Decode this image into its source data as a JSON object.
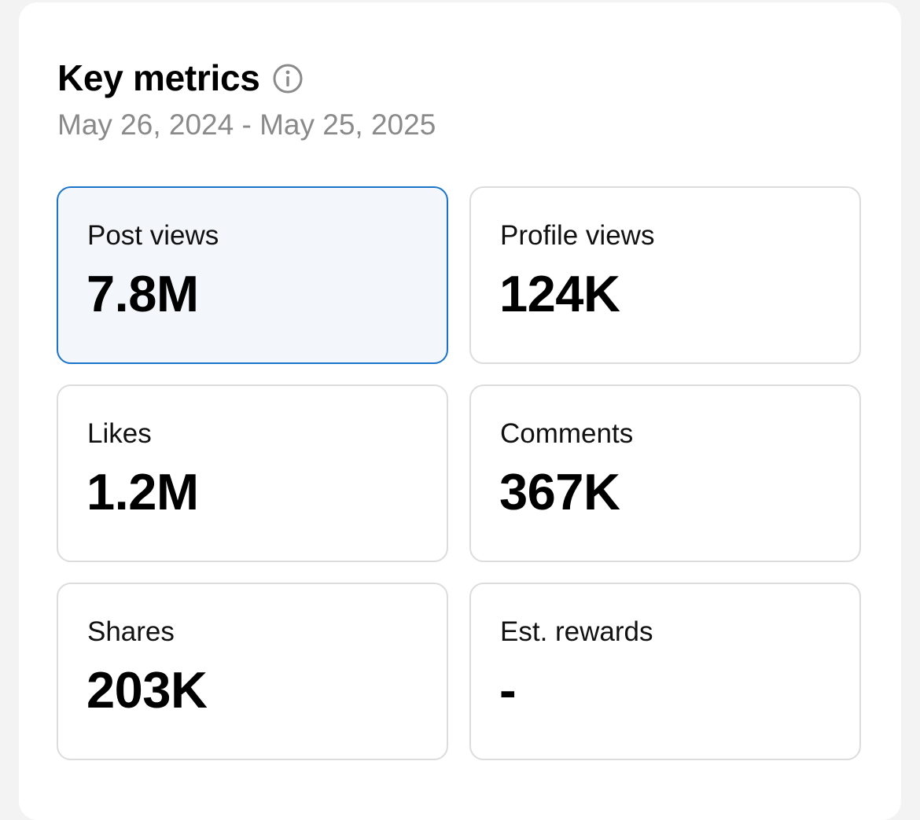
{
  "header": {
    "title": "Key metrics",
    "info_icon": "info-icon",
    "date_range": "May 26, 2024 - May 25, 2025"
  },
  "colors": {
    "selected_border": "#1a73c9",
    "selected_background": "#f3f7fc",
    "card_border": "#dcdcdc",
    "subtitle": "#8a8a8a"
  },
  "metrics": [
    {
      "label": "Post views",
      "value": "7.8M",
      "selected": true
    },
    {
      "label": "Profile views",
      "value": "124K",
      "selected": false
    },
    {
      "label": "Likes",
      "value": "1.2M",
      "selected": false
    },
    {
      "label": "Comments",
      "value": "367K",
      "selected": false
    },
    {
      "label": "Shares",
      "value": "203K",
      "selected": false
    },
    {
      "label": "Est. rewards",
      "value": "-",
      "selected": false
    }
  ]
}
